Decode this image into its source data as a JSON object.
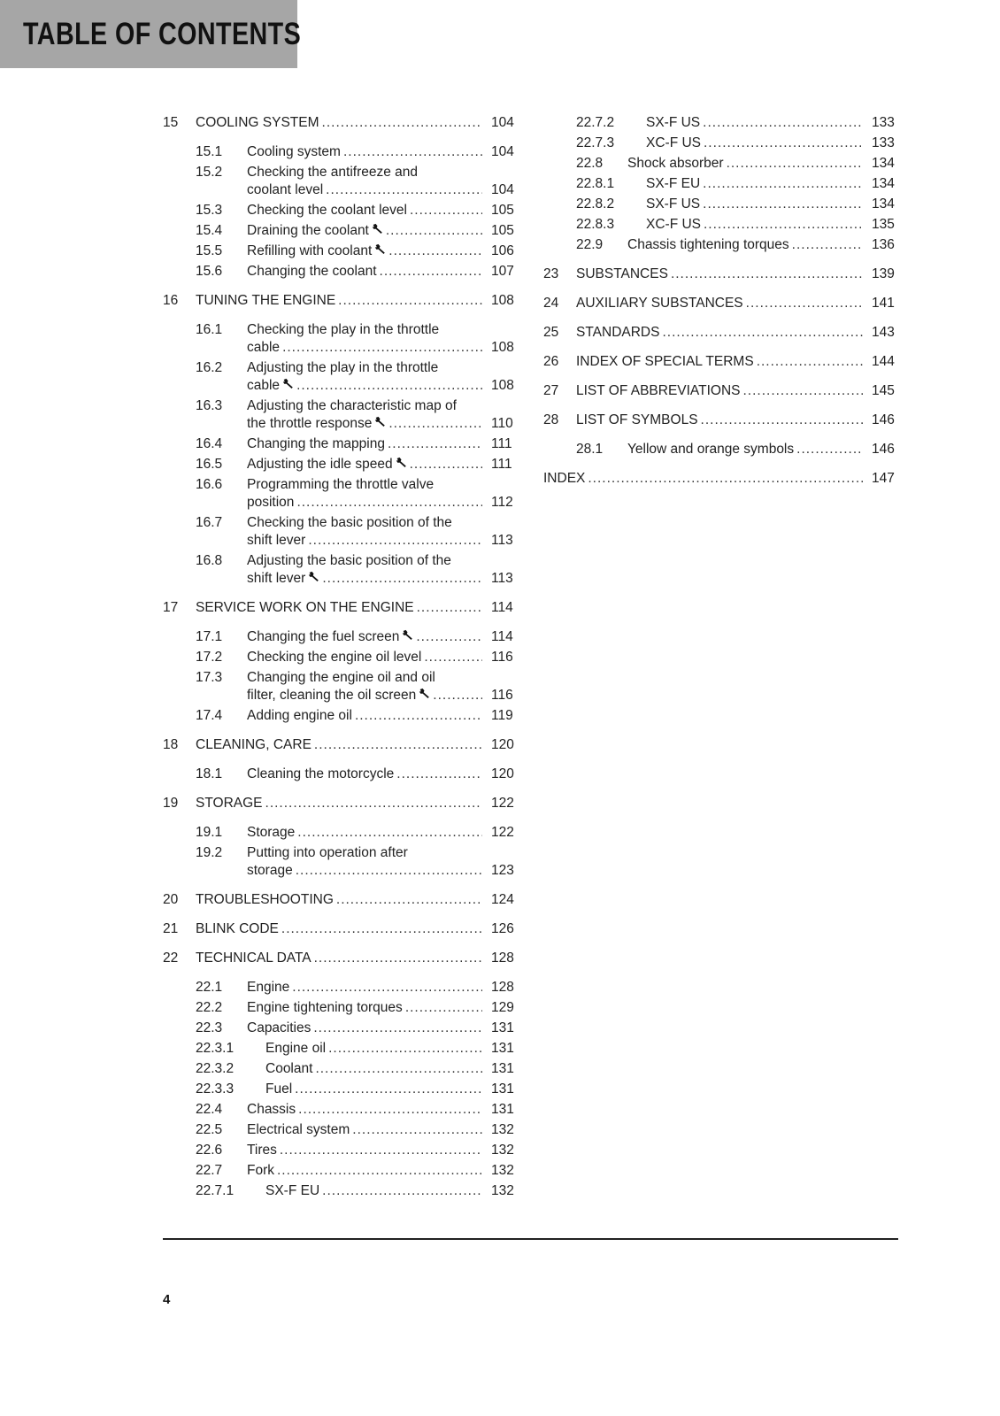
{
  "header": {
    "title": "TABLE OF CONTENTS",
    "background": "#a6a6a6"
  },
  "icons": {
    "wrench": "wrench-icon"
  },
  "columns": [
    [
      {
        "level": "chapter",
        "num": "15",
        "lines": [
          "COOLING SYSTEM"
        ],
        "page": "104"
      },
      {
        "level": "sub",
        "num": "15.1",
        "lines": [
          "Cooling system"
        ],
        "page": "104"
      },
      {
        "level": "sub",
        "num": "15.2",
        "lines": [
          "Checking the antifreeze and",
          "coolant level"
        ],
        "page": "104"
      },
      {
        "level": "sub",
        "num": "15.3",
        "lines": [
          "Checking the coolant level"
        ],
        "page": "105"
      },
      {
        "level": "sub",
        "num": "15.4",
        "lines": [
          "Draining the coolant"
        ],
        "page": "105",
        "wrench": true
      },
      {
        "level": "sub",
        "num": "15.5",
        "lines": [
          "Refilling with coolant"
        ],
        "page": "106",
        "wrench": true
      },
      {
        "level": "sub",
        "num": "15.6",
        "lines": [
          "Changing the coolant"
        ],
        "page": "107"
      },
      {
        "level": "chapter",
        "num": "16",
        "lines": [
          "TUNING THE ENGINE"
        ],
        "page": "108"
      },
      {
        "level": "sub",
        "num": "16.1",
        "lines": [
          "Checking the play in the throttle",
          "cable"
        ],
        "page": "108"
      },
      {
        "level": "sub",
        "num": "16.2",
        "lines": [
          "Adjusting the play in the throttle",
          "cable"
        ],
        "page": "108",
        "wrench": true
      },
      {
        "level": "sub",
        "num": "16.3",
        "lines": [
          "Adjusting the characteristic map of",
          "the throttle response"
        ],
        "page": "110",
        "wrench": true
      },
      {
        "level": "sub",
        "num": "16.4",
        "lines": [
          "Changing the mapping"
        ],
        "page": "111"
      },
      {
        "level": "sub",
        "num": "16.5",
        "lines": [
          "Adjusting the idle speed"
        ],
        "page": "111",
        "wrench": true
      },
      {
        "level": "sub",
        "num": "16.6",
        "lines": [
          "Programming the throttle valve",
          "position"
        ],
        "page": "112"
      },
      {
        "level": "sub",
        "num": "16.7",
        "lines": [
          "Checking the basic position of the",
          "shift lever"
        ],
        "page": "113"
      },
      {
        "level": "sub",
        "num": "16.8",
        "lines": [
          "Adjusting the basic position of the",
          "shift lever"
        ],
        "page": "113",
        "wrench": true
      },
      {
        "level": "chapter",
        "num": "17",
        "lines": [
          "SERVICE WORK ON THE ENGINE"
        ],
        "page": "114"
      },
      {
        "level": "sub",
        "num": "17.1",
        "lines": [
          "Changing the fuel screen"
        ],
        "page": "114",
        "wrench": true
      },
      {
        "level": "sub",
        "num": "17.2",
        "lines": [
          "Checking the engine oil level"
        ],
        "page": "116"
      },
      {
        "level": "sub",
        "num": "17.3",
        "lines": [
          "Changing the engine oil and oil",
          "filter, cleaning the oil screen"
        ],
        "page": "116",
        "wrench": true
      },
      {
        "level": "sub",
        "num": "17.4",
        "lines": [
          "Adding engine oil"
        ],
        "page": "119"
      },
      {
        "level": "chapter",
        "num": "18",
        "lines": [
          "CLEANING, CARE"
        ],
        "page": "120"
      },
      {
        "level": "sub",
        "num": "18.1",
        "lines": [
          "Cleaning the motorcycle"
        ],
        "page": "120"
      },
      {
        "level": "chapter",
        "num": "19",
        "lines": [
          "STORAGE"
        ],
        "page": "122"
      },
      {
        "level": "sub",
        "num": "19.1",
        "lines": [
          "Storage"
        ],
        "page": "122"
      },
      {
        "level": "sub",
        "num": "19.2",
        "lines": [
          "Putting into operation after",
          "storage"
        ],
        "page": "123"
      },
      {
        "level": "chapter",
        "num": "20",
        "lines": [
          "TROUBLESHOOTING"
        ],
        "page": "124"
      },
      {
        "level": "chapter",
        "num": "21",
        "lines": [
          "BLINK CODE"
        ],
        "page": "126"
      },
      {
        "level": "chapter",
        "num": "22",
        "lines": [
          "TECHNICAL DATA"
        ],
        "page": "128"
      },
      {
        "level": "sub",
        "num": "22.1",
        "lines": [
          "Engine"
        ],
        "page": "128"
      },
      {
        "level": "sub",
        "num": "22.2",
        "lines": [
          "Engine tightening torques"
        ],
        "page": "129"
      },
      {
        "level": "sub",
        "num": "22.3",
        "lines": [
          "Capacities"
        ],
        "page": "131"
      },
      {
        "level": "subsub",
        "num": "22.3.1",
        "lines": [
          "Engine oil"
        ],
        "page": "131"
      },
      {
        "level": "subsub",
        "num": "22.3.2",
        "lines": [
          "Coolant"
        ],
        "page": "131"
      },
      {
        "level": "subsub",
        "num": "22.3.3",
        "lines": [
          "Fuel"
        ],
        "page": "131"
      },
      {
        "level": "sub",
        "num": "22.4",
        "lines": [
          "Chassis"
        ],
        "page": "131"
      },
      {
        "level": "sub",
        "num": "22.5",
        "lines": [
          "Electrical system"
        ],
        "page": "132"
      },
      {
        "level": "sub",
        "num": "22.6",
        "lines": [
          "Tires"
        ],
        "page": "132"
      },
      {
        "level": "sub",
        "num": "22.7",
        "lines": [
          "Fork"
        ],
        "page": "132"
      },
      {
        "level": "subsub",
        "num": "22.7.1",
        "lines": [
          "SX-F EU"
        ],
        "page": "132"
      }
    ],
    [
      {
        "level": "subsub",
        "num": "22.7.2",
        "lines": [
          "SX-F US"
        ],
        "page": "133"
      },
      {
        "level": "subsub",
        "num": "22.7.3",
        "lines": [
          "XC-F US"
        ],
        "page": "133"
      },
      {
        "level": "sub",
        "num": "22.8",
        "lines": [
          "Shock absorber"
        ],
        "page": "134"
      },
      {
        "level": "subsub",
        "num": "22.8.1",
        "lines": [
          "SX-F EU"
        ],
        "page": "134"
      },
      {
        "level": "subsub",
        "num": "22.8.2",
        "lines": [
          "SX-F US"
        ],
        "page": "134"
      },
      {
        "level": "subsub",
        "num": "22.8.3",
        "lines": [
          "XC-F US"
        ],
        "page": "135"
      },
      {
        "level": "sub",
        "num": "22.9",
        "lines": [
          "Chassis tightening torques"
        ],
        "page": "136"
      },
      {
        "level": "chapter",
        "num": "23",
        "lines": [
          "SUBSTANCES"
        ],
        "page": "139"
      },
      {
        "level": "chapter",
        "num": "24",
        "lines": [
          "AUXILIARY SUBSTANCES"
        ],
        "page": "141"
      },
      {
        "level": "chapter",
        "num": "25",
        "lines": [
          "STANDARDS"
        ],
        "page": "143"
      },
      {
        "level": "chapter",
        "num": "26",
        "lines": [
          "INDEX OF SPECIAL TERMS"
        ],
        "page": "144"
      },
      {
        "level": "chapter",
        "num": "27",
        "lines": [
          "LIST OF ABBREVIATIONS"
        ],
        "page": "145"
      },
      {
        "level": "chapter",
        "num": "28",
        "lines": [
          "LIST OF SYMBOLS"
        ],
        "page": "146"
      },
      {
        "level": "sub",
        "num": "28.1",
        "lines": [
          "Yellow and orange symbols"
        ],
        "page": "146"
      },
      {
        "level": "chapter plain",
        "lines": [
          "INDEX"
        ],
        "page": "147"
      }
    ]
  ],
  "footer": {
    "page_number": "4"
  }
}
